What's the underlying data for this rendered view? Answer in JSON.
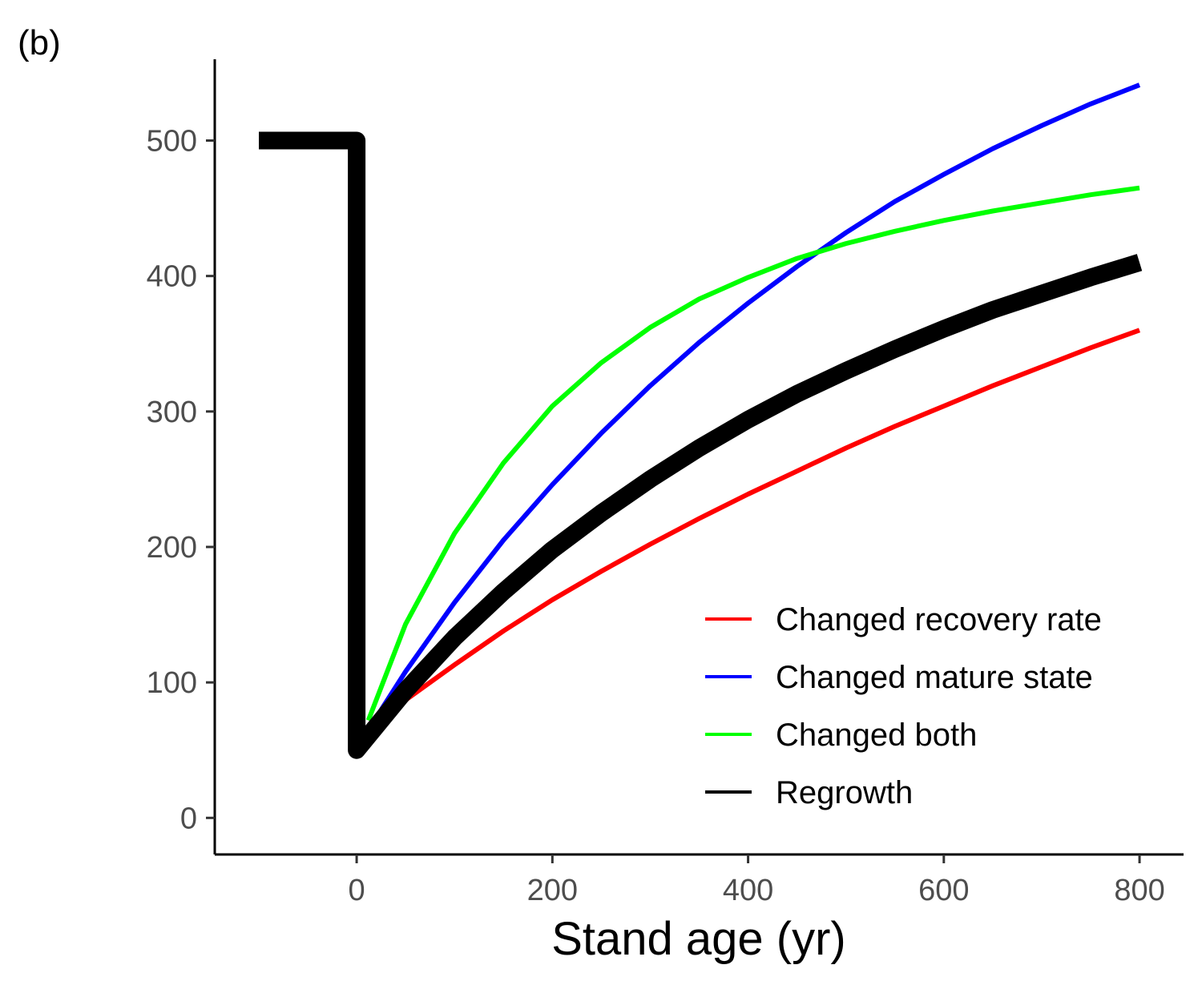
{
  "chart_data": {
    "type": "line",
    "panel_label": "(b)",
    "title": "",
    "xlabel": "Stand age (yr)",
    "ylabel": "",
    "xlim": [
      -145,
      845
    ],
    "ylim": [
      -27,
      560
    ],
    "x_ticks": [
      0,
      200,
      400,
      600,
      800
    ],
    "y_ticks": [
      0,
      100,
      200,
      300,
      400,
      500
    ],
    "grid": false,
    "legend_position": "bottom-right",
    "series": [
      {
        "name": "Changed recovery rate",
        "color": "#ff0000",
        "linewidth": "thin",
        "x": [
          12,
          50,
          100,
          150,
          200,
          250,
          300,
          350,
          400,
          450,
          500,
          550,
          600,
          650,
          700,
          750,
          800
        ],
        "y": [
          65,
          87,
          113,
          138,
          161,
          182,
          202,
          221,
          239,
          256,
          273,
          289,
          304,
          319,
          333,
          347,
          360
        ]
      },
      {
        "name": "Changed mature state",
        "color": "#0000ff",
        "linewidth": "thin",
        "x": [
          12,
          50,
          100,
          150,
          200,
          250,
          300,
          350,
          400,
          450,
          500,
          550,
          600,
          650,
          700,
          750,
          800
        ],
        "y": [
          65,
          108,
          159,
          205,
          246,
          284,
          319,
          351,
          380,
          407,
          432,
          455,
          475,
          494,
          511,
          527,
          541
        ]
      },
      {
        "name": "Changed both",
        "color": "#00ff00",
        "linewidth": "thin",
        "x": [
          12,
          50,
          100,
          150,
          200,
          250,
          300,
          350,
          400,
          450,
          500,
          550,
          600,
          650,
          700,
          750,
          800
        ],
        "y": [
          72,
          143,
          210,
          262,
          304,
          336,
          362,
          383,
          399,
          413,
          424,
          433,
          441,
          448,
          454,
          460,
          465
        ]
      },
      {
        "name": "Regrowth",
        "color": "#000000",
        "linewidth": "thick",
        "x": [
          -100,
          0,
          0,
          50,
          100,
          150,
          200,
          250,
          300,
          350,
          400,
          450,
          500,
          550,
          600,
          650,
          700,
          750,
          800
        ],
        "y": [
          500,
          500,
          50,
          94,
          133,
          167,
          198,
          225,
          250,
          273,
          294,
          313,
          330,
          346,
          361,
          375,
          387,
          399,
          410
        ]
      }
    ]
  }
}
